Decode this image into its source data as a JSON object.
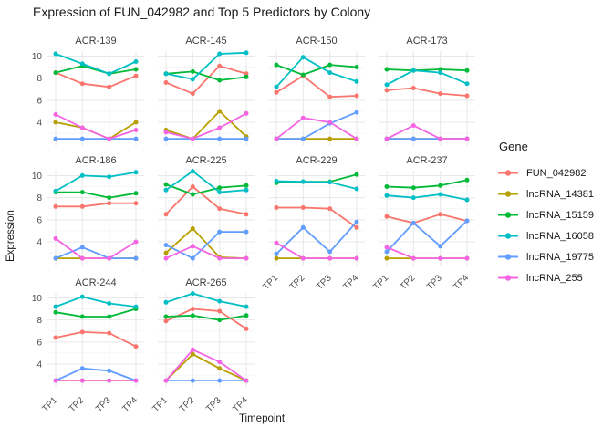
{
  "title": "Expression of FUN_042982 and Top 5 Predictors by Colony",
  "axes": {
    "x_label": "Timepoint",
    "y_label": "Expression",
    "x_ticks": [
      "TP1",
      "TP2",
      "TP3",
      "TP4"
    ],
    "y_ticks": [
      4,
      6,
      8,
      10
    ],
    "y_minor_ticks": [
      3,
      5,
      7,
      9
    ],
    "ylim": [
      1.85,
      10.45
    ]
  },
  "legend": {
    "title": "Gene",
    "entries": [
      {
        "label": "FUN_042982",
        "color": "#F8766D"
      },
      {
        "label": "lncRNA_14381",
        "color": "#B79F00"
      },
      {
        "label": "lncRNA_15159",
        "color": "#00BA38"
      },
      {
        "label": "lncRNA_16058",
        "color": "#00BFC4"
      },
      {
        "label": "lncRNA_19775",
        "color": "#619CFF"
      },
      {
        "label": "lncRNA_255",
        "color": "#F564E3"
      }
    ]
  },
  "style": {
    "grid_major_color": "#e8e8e8",
    "grid_minor_color": "#f3f3f3",
    "background": "#ffffff"
  },
  "chart_data": {
    "type": "line",
    "x": [
      "TP1",
      "TP2",
      "TP3",
      "TP4"
    ],
    "facets": [
      {
        "colony": "ACR-139",
        "series": [
          {
            "name": "FUN_042982",
            "values": [
              8.5,
              7.5,
              7.2,
              8.2
            ]
          },
          {
            "name": "lncRNA_14381",
            "values": [
              4.0,
              3.5,
              2.5,
              4.0
            ]
          },
          {
            "name": "lncRNA_15159",
            "values": [
              8.5,
              9.1,
              8.4,
              8.8
            ]
          },
          {
            "name": "lncRNA_16058",
            "values": [
              10.2,
              9.3,
              8.4,
              9.5
            ]
          },
          {
            "name": "lncRNA_19775",
            "values": [
              2.5,
              2.5,
              2.5,
              2.5
            ]
          },
          {
            "name": "lncRNA_255",
            "values": [
              4.7,
              3.5,
              2.5,
              3.3
            ]
          }
        ]
      },
      {
        "colony": "ACR-145",
        "series": [
          {
            "name": "FUN_042982",
            "values": [
              7.6,
              6.6,
              9.1,
              8.4
            ]
          },
          {
            "name": "lncRNA_14381",
            "values": [
              3.3,
              2.5,
              5.0,
              2.7
            ]
          },
          {
            "name": "lncRNA_15159",
            "values": [
              8.4,
              8.6,
              7.8,
              8.1
            ]
          },
          {
            "name": "lncRNA_16058",
            "values": [
              8.4,
              7.9,
              10.2,
              10.3
            ]
          },
          {
            "name": "lncRNA_19775",
            "values": [
              2.5,
              2.5,
              2.5,
              2.5
            ]
          },
          {
            "name": "lncRNA_255",
            "values": [
              3.1,
              2.5,
              3.5,
              4.8
            ]
          }
        ]
      },
      {
        "colony": "ACR-150",
        "series": [
          {
            "name": "FUN_042982",
            "values": [
              6.7,
              8.2,
              6.3,
              6.4
            ]
          },
          {
            "name": "lncRNA_14381",
            "values": [
              2.5,
              2.5,
              2.5,
              2.5
            ]
          },
          {
            "name": "lncRNA_15159",
            "values": [
              9.2,
              8.3,
              9.2,
              9.0
            ]
          },
          {
            "name": "lncRNA_16058",
            "values": [
              7.2,
              9.9,
              8.5,
              7.7
            ]
          },
          {
            "name": "lncRNA_19775",
            "values": [
              2.5,
              2.5,
              3.9,
              4.9
            ]
          },
          {
            "name": "lncRNA_255",
            "values": [
              2.5,
              4.4,
              4.0,
              2.5
            ]
          }
        ]
      },
      {
        "colony": "ACR-173",
        "series": [
          {
            "name": "FUN_042982",
            "values": [
              6.9,
              7.1,
              6.6,
              6.4
            ]
          },
          {
            "name": "lncRNA_14381",
            "values": [
              2.5,
              2.5,
              2.5,
              2.5
            ]
          },
          {
            "name": "lncRNA_15159",
            "values": [
              8.8,
              8.7,
              8.8,
              8.7
            ]
          },
          {
            "name": "lncRNA_16058",
            "values": [
              7.4,
              8.7,
              8.5,
              7.5
            ]
          },
          {
            "name": "lncRNA_19775",
            "values": [
              2.5,
              2.5,
              2.5,
              2.5
            ]
          },
          {
            "name": "lncRNA_255",
            "values": [
              2.5,
              3.7,
              2.5,
              2.5
            ]
          }
        ]
      },
      {
        "colony": "ACR-186",
        "series": [
          {
            "name": "FUN_042982",
            "values": [
              7.2,
              7.2,
              7.5,
              7.5
            ]
          },
          {
            "name": "lncRNA_14381",
            "values": [
              2.5,
              2.5,
              2.5,
              2.5
            ]
          },
          {
            "name": "lncRNA_15159",
            "values": [
              8.5,
              8.5,
              8.0,
              8.4
            ]
          },
          {
            "name": "lncRNA_16058",
            "values": [
              8.6,
              10.0,
              9.9,
              10.3
            ]
          },
          {
            "name": "lncRNA_19775",
            "values": [
              2.5,
              3.5,
              2.5,
              2.5
            ]
          },
          {
            "name": "lncRNA_255",
            "values": [
              4.3,
              2.5,
              2.5,
              4.0
            ]
          }
        ]
      },
      {
        "colony": "ACR-225",
        "series": [
          {
            "name": "FUN_042982",
            "values": [
              6.5,
              9.0,
              7.0,
              6.5
            ]
          },
          {
            "name": "lncRNA_14381",
            "values": [
              3.0,
              5.2,
              2.6,
              2.5
            ]
          },
          {
            "name": "lncRNA_15159",
            "values": [
              9.2,
              8.3,
              8.9,
              9.1
            ]
          },
          {
            "name": "lncRNA_16058",
            "values": [
              8.7,
              10.4,
              8.5,
              8.7
            ]
          },
          {
            "name": "lncRNA_19775",
            "values": [
              3.7,
              2.5,
              4.9,
              4.9
            ]
          },
          {
            "name": "lncRNA_255",
            "values": [
              2.5,
              3.6,
              2.5,
              2.5
            ]
          }
        ]
      },
      {
        "colony": "ACR-229",
        "series": [
          {
            "name": "FUN_042982",
            "values": [
              7.1,
              7.1,
              7.0,
              5.3
            ]
          },
          {
            "name": "lncRNA_14381",
            "values": [
              2.5,
              2.5,
              2.5,
              2.5
            ]
          },
          {
            "name": "lncRNA_15159",
            "values": [
              9.35,
              9.45,
              9.45,
              10.1
            ]
          },
          {
            "name": "lncRNA_16058",
            "values": [
              9.5,
              9.45,
              9.4,
              8.8
            ]
          },
          {
            "name": "lncRNA_19775",
            "values": [
              2.9,
              5.3,
              3.1,
              5.8
            ]
          },
          {
            "name": "lncRNA_255",
            "values": [
              3.9,
              2.5,
              2.5,
              2.5
            ]
          }
        ]
      },
      {
        "colony": "ACR-237",
        "series": [
          {
            "name": "FUN_042982",
            "values": [
              6.3,
              5.7,
              6.5,
              5.9
            ]
          },
          {
            "name": "lncRNA_14381",
            "values": [
              2.5,
              2.5,
              2.5,
              2.5
            ]
          },
          {
            "name": "lncRNA_15159",
            "values": [
              9.0,
              8.9,
              9.1,
              9.6
            ]
          },
          {
            "name": "lncRNA_16058",
            "values": [
              8.2,
              8.0,
              8.3,
              7.8
            ]
          },
          {
            "name": "lncRNA_19775",
            "values": [
              3.1,
              5.7,
              3.6,
              5.9
            ]
          },
          {
            "name": "lncRNA_255",
            "values": [
              3.5,
              2.5,
              2.5,
              2.5
            ]
          }
        ]
      },
      {
        "colony": "ACR-244",
        "series": [
          {
            "name": "FUN_042982",
            "values": [
              6.4,
              6.9,
              6.8,
              5.6
            ]
          },
          {
            "name": "lncRNA_14381",
            "values": [
              2.5,
              2.5,
              2.5,
              2.5
            ]
          },
          {
            "name": "lncRNA_15159",
            "values": [
              8.7,
              8.3,
              8.3,
              9.0
            ]
          },
          {
            "name": "lncRNA_16058",
            "values": [
              9.2,
              10.1,
              9.5,
              9.2
            ]
          },
          {
            "name": "lncRNA_19775",
            "values": [
              2.5,
              3.6,
              3.4,
              2.5
            ]
          },
          {
            "name": "lncRNA_255",
            "values": [
              2.5,
              2.5,
              2.5,
              2.5
            ]
          }
        ]
      },
      {
        "colony": "ACR-265",
        "series": [
          {
            "name": "FUN_042982",
            "values": [
              7.9,
              9.0,
              8.8,
              7.2
            ]
          },
          {
            "name": "lncRNA_14381",
            "values": [
              2.5,
              4.9,
              3.6,
              2.5
            ]
          },
          {
            "name": "lncRNA_15159",
            "values": [
              8.3,
              8.4,
              8.0,
              8.4
            ]
          },
          {
            "name": "lncRNA_16058",
            "values": [
              9.6,
              10.4,
              9.7,
              9.2
            ]
          },
          {
            "name": "lncRNA_19775",
            "values": [
              2.5,
              2.5,
              2.5,
              2.5
            ]
          },
          {
            "name": "lncRNA_255",
            "values": [
              2.5,
              5.3,
              4.2,
              2.5
            ]
          }
        ]
      }
    ]
  }
}
